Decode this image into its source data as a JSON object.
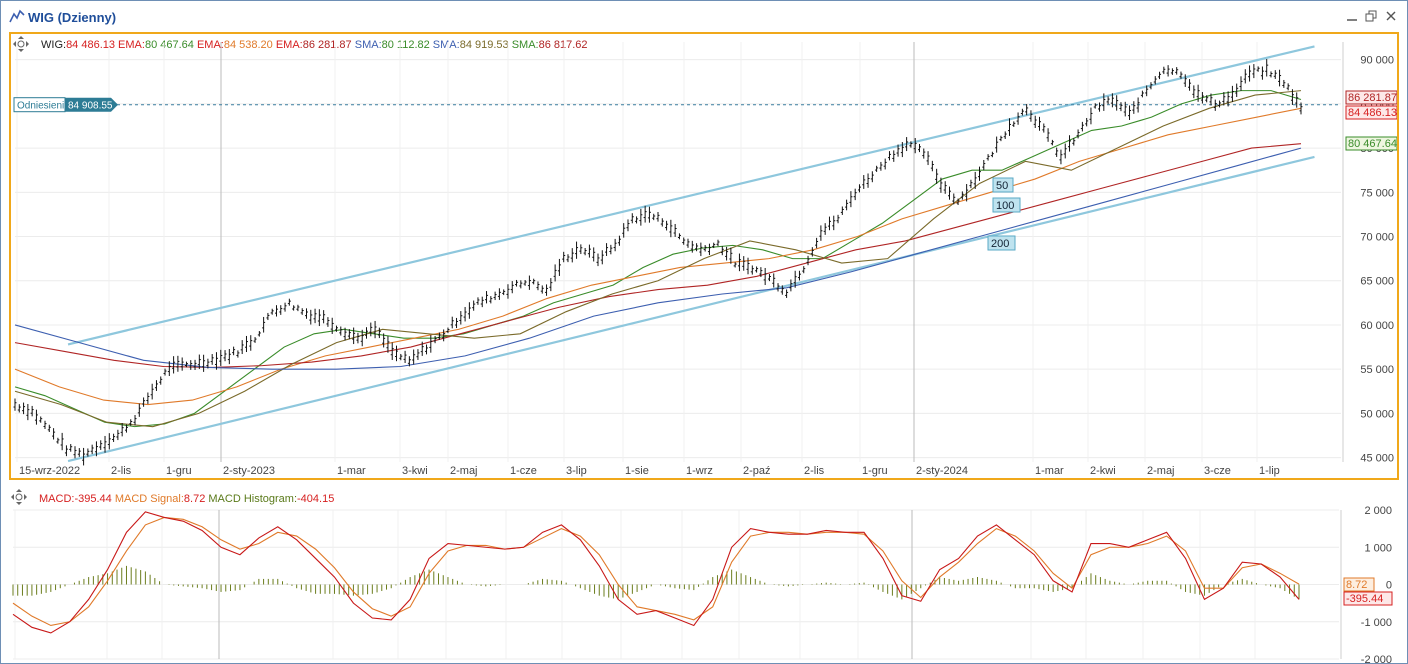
{
  "window": {
    "title": "WIG (Dzienny)",
    "controls": [
      "minimize",
      "maximize",
      "close"
    ]
  },
  "legend_price": [
    {
      "label": "WIG:",
      "value": "84 486.13",
      "label_color": "#222222",
      "value_color": "#d62020"
    },
    {
      "label": " EMA:",
      "value": "80 467.64",
      "label_color": "#d62020",
      "value_color": "#3a8c2a"
    },
    {
      "label": " EMA:",
      "value": "84 538.20",
      "label_color": "#d62020",
      "value_color": "#e07a2a"
    },
    {
      "label": " EMA:",
      "value": "86 281.87",
      "label_color": "#d62020",
      "value_color": "#b02525"
    },
    {
      "label": " SMA:",
      "value": "80 112.82",
      "label_color": "#3d5fb0",
      "value_color": "#3a8c2a"
    },
    {
      "label": " SMA:",
      "value": "84 919.53",
      "label_color": "#3d5fb0",
      "value_color": "#7a6a2a"
    },
    {
      "label": " SMA:",
      "value": "86 817.62",
      "label_color": "#3a8c2a",
      "value_color": "#b02525"
    }
  ],
  "legend_macd": [
    {
      "label": "MACD:",
      "value": "-395.44",
      "label_color": "#d62020",
      "value_color": "#d62020"
    },
    {
      "label": " MACD Signal:",
      "value": "8.72",
      "label_color": "#e07a2a",
      "value_color": "#d62020"
    },
    {
      "label": " MACD Histogram:",
      "value": "-404.15",
      "label_color": "#5a7a1a",
      "value_color": "#d62020"
    }
  ],
  "reference_line": {
    "label": "Odniesienie",
    "value": "84 908.55"
  },
  "ma_tags": [
    "50",
    "100",
    "200"
  ],
  "price_tags": [
    {
      "text": "86 281.87",
      "bg": "#fde8e8",
      "color": "#b02525",
      "border": "#b02525"
    },
    {
      "text": "84 486.13",
      "bg": "#fde8e8",
      "color": "#d62020",
      "border": "#d62020"
    },
    {
      "text": "80 467.64",
      "bg": "#eef6e0",
      "color": "#3a8c2a",
      "border": "#3a8c2a"
    }
  ],
  "macd_tags": [
    {
      "text": "8.72",
      "bg": "#fdeee0",
      "color": "#e07a2a",
      "border": "#e07a2a"
    },
    {
      "text": "-395.44",
      "bg": "#fde8e8",
      "color": "#d62020",
      "border": "#d62020"
    }
  ],
  "chart_data": [
    {
      "type": "line",
      "title": "WIG (Dzienny)",
      "x_labels": [
        "15-wrz-2022",
        "2-lis",
        "1-gru",
        "2-sty-2023",
        "1-mar",
        "3-kwi",
        "2-maj",
        "1-cze",
        "3-lip",
        "1-sie",
        "1-wrz",
        "2-paź",
        "2-lis",
        "1-gru",
        "2-sty-2024",
        "1-mar",
        "2-kwi",
        "2-maj",
        "3-cze",
        "1-lip"
      ],
      "y_ticks": [
        "90 000",
        "85 000",
        "80 000",
        "75 000",
        "70 000",
        "65 000",
        "60 000",
        "55 000",
        "50 000",
        "45 000"
      ],
      "ylim": [
        44500,
        92000
      ],
      "grid": true,
      "series": [
        {
          "name": "WIG",
          "color": "#111111",
          "values": [
            51000,
            50200,
            48200,
            46000,
            45300,
            46500,
            47500,
            49500,
            52500,
            55200,
            55500,
            55800,
            56300,
            57000,
            58500,
            61500,
            62400,
            61300,
            60800,
            59500,
            58500,
            59500,
            57000,
            55800,
            57500,
            59000,
            61000,
            62500,
            63300,
            64300,
            65000,
            63800,
            67500,
            68700,
            67500,
            69000,
            72000,
            72500,
            71500,
            69500,
            68500,
            69200,
            67000,
            66500,
            65300,
            63800,
            66500,
            70500,
            72000,
            75000,
            77000,
            79000,
            80500,
            79500,
            76000,
            74000,
            76500,
            79500,
            82500,
            84500,
            82000,
            79000,
            81500,
            84500,
            85500,
            83800,
            86500,
            89000,
            88500,
            86000,
            85000,
            86000,
            88500,
            88800,
            87500,
            84500
          ]
        },
        {
          "name": "EMA 50",
          "color": "#3a8c2a",
          "values": [
            53000,
            52000,
            50500,
            49000,
            48500,
            48800,
            50000,
            52500,
            55000,
            57500,
            59000,
            59500,
            59000,
            58500,
            58500,
            59000,
            60000,
            61000,
            62500,
            63500,
            64500,
            66500,
            68000,
            68700,
            69000,
            68500,
            67500,
            67500,
            69500,
            71500,
            74000,
            76500,
            77500,
            77500,
            79000,
            80500,
            82000,
            82500,
            83500,
            85000,
            86000,
            86500,
            86500,
            85500
          ]
        },
        {
          "name": "EMA 100",
          "color": "#e07a2a",
          "values": [
            55000,
            53000,
            51500,
            51000,
            51500,
            53000,
            55000,
            56500,
            57500,
            58500,
            59500,
            61000,
            63000,
            64500,
            65500,
            66500,
            67000,
            67500,
            68500,
            70000,
            72000,
            73500,
            75000,
            76500,
            78500,
            80000,
            81500,
            82500,
            83500,
            84500
          ]
        },
        {
          "name": "EMA 200",
          "color": "#b02525",
          "values": [
            58000,
            57000,
            56000,
            55300,
            55200,
            55400,
            55800,
            56500,
            57500,
            59000,
            60500,
            62000,
            63200,
            64000,
            64500,
            65500,
            67000,
            68500,
            69500,
            71000,
            72500,
            74000,
            75500,
            77000,
            78500,
            80000,
            80500
          ]
        },
        {
          "name": "SMA 50",
          "color": "#7a6a2a",
          "values": [
            52500,
            51000,
            49000,
            48500,
            50000,
            52500,
            55500,
            58000,
            59500,
            59000,
            58500,
            59000,
            61500,
            63500,
            65000,
            67500,
            69500,
            68500,
            67000,
            67500,
            72000,
            76000,
            78500,
            77500,
            80000,
            82500,
            84500,
            86000,
            86500
          ]
        },
        {
          "name": "SMA 200",
          "color": "#3d5fb0",
          "values": [
            60000,
            58000,
            56000,
            55200,
            55000,
            55000,
            55300,
            56500,
            58500,
            61000,
            62500,
            63500,
            64200,
            66000,
            68000,
            70000,
            72000,
            74000,
            76000,
            78000,
            80000
          ]
        }
      ],
      "trend_channel": {
        "upper": [
          [
            0.04,
            57800
          ],
          [
            0.98,
            91500
          ]
        ],
        "lower": [
          [
            0.04,
            44600
          ],
          [
            0.98,
            79000
          ]
        ],
        "color": "#8ec7dd"
      },
      "reference_value": 84908.55
    },
    {
      "type": "line",
      "title": "MACD",
      "y_ticks": [
        "2 000",
        "1 000",
        "0",
        "-1 000",
        "-2 000"
      ],
      "ylim": [
        -2000,
        2000
      ],
      "series": [
        {
          "name": "MACD",
          "color": "#c81818",
          "values": [
            -800,
            -1150,
            -1300,
            -1000,
            -400,
            400,
            1400,
            1950,
            1800,
            1700,
            1450,
            1000,
            800,
            1250,
            1550,
            1200,
            700,
            200,
            -500,
            -900,
            -950,
            -400,
            700,
            1100,
            1050,
            1000,
            950,
            1000,
            1400,
            1600,
            1200,
            500,
            -400,
            -800,
            -700,
            -900,
            -1100,
            -400,
            1000,
            1500,
            1400,
            1350,
            1350,
            1450,
            1400,
            1400,
            700,
            -300,
            -450,
            400,
            700,
            1300,
            1600,
            1200,
            800,
            100,
            -200,
            1100,
            1100,
            1000,
            1200,
            1400,
            700,
            -400,
            -100,
            600,
            550,
            200,
            -400
          ]
        },
        {
          "name": "MACD Signal",
          "color": "#e07a2a",
          "values": [
            -500,
            -850,
            -1100,
            -1000,
            -600,
            100,
            900,
            1600,
            1800,
            1750,
            1550,
            1200,
            950,
            1100,
            1400,
            1300,
            950,
            450,
            -200,
            -650,
            -850,
            -600,
            300,
            900,
            1050,
            1050,
            950,
            1000,
            1250,
            1500,
            1300,
            800,
            0,
            -600,
            -700,
            -800,
            -950,
            -600,
            600,
            1300,
            1400,
            1400,
            1350,
            1400,
            1400,
            1350,
            900,
            100,
            -350,
            200,
            600,
            1100,
            1500,
            1300,
            900,
            300,
            -100,
            800,
            1000,
            1000,
            1100,
            1300,
            900,
            -100,
            -100,
            450,
            550,
            300,
            10
          ]
        },
        {
          "name": "MACD Histogram",
          "color": "#6b7d1d",
          "values": [
            -300,
            -300,
            -200,
            0,
            200,
            300,
            500,
            350,
            0,
            -50,
            -100,
            -200,
            -150,
            150,
            150,
            -100,
            -250,
            -250,
            -300,
            -250,
            -100,
            200,
            400,
            200,
            0,
            -50,
            0,
            0,
            150,
            100,
            -100,
            -300,
            -400,
            -200,
            0,
            -100,
            -150,
            200,
            400,
            200,
            0,
            -50,
            0,
            50,
            0,
            50,
            -200,
            -400,
            -100,
            200,
            100,
            200,
            100,
            -100,
            -100,
            -200,
            -100,
            300,
            100,
            0,
            100,
            100,
            -200,
            -300,
            0,
            150,
            0,
            -100,
            -400
          ]
        }
      ]
    }
  ]
}
